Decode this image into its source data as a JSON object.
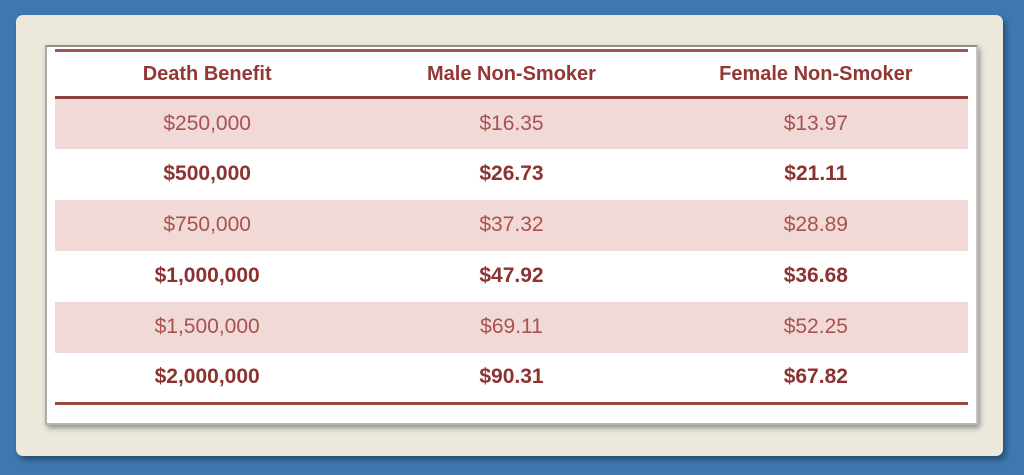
{
  "colors": {
    "frame_blue": "#3d78b2",
    "mat_cream": "#ece8dc",
    "panel_white": "#ffffff",
    "row_pink": "#f1d9d7",
    "rule_red": "#9d4a47",
    "header_text": "#943634",
    "bold_row_text": "#8c3230",
    "pink_row_text": "#a9524e"
  },
  "table": {
    "columns": [
      "Death Benefit",
      "Male Non-Smoker",
      "Female Non-Smoker"
    ],
    "rows": [
      [
        "$250,000",
        "$16.35",
        "$13.97"
      ],
      [
        "$500,000",
        "$26.73",
        "$21.11"
      ],
      [
        "$750,000",
        "$37.32",
        "$28.89"
      ],
      [
        "$1,000,000",
        "$47.92",
        "$36.68"
      ],
      [
        "$1,500,000",
        "$69.11",
        "$52.25"
      ],
      [
        "$2,000,000",
        "$90.31",
        "$67.82"
      ]
    ]
  },
  "chart_data": {
    "type": "table",
    "columns": [
      "Death Benefit",
      "Male Non-Smoker",
      "Female Non-Smoker"
    ],
    "rows": [
      [
        "$250,000",
        "$16.35",
        "$13.97"
      ],
      [
        "$500,000",
        "$26.73",
        "$21.11"
      ],
      [
        "$750,000",
        "$37.32",
        "$28.89"
      ],
      [
        "$1,000,000",
        "$47.92",
        "$36.68"
      ],
      [
        "$1,500,000",
        "$69.11",
        "$52.25"
      ],
      [
        "$2,000,000",
        "$90.31",
        "$67.82"
      ]
    ],
    "death_benefits_numeric": [
      250000,
      500000,
      750000,
      1000000,
      1500000,
      2000000
    ],
    "male_non_smoker_numeric": [
      16.35,
      26.73,
      37.32,
      47.92,
      69.11,
      90.31
    ],
    "female_non_smoker_numeric": [
      13.97,
      21.11,
      28.89,
      36.68,
      52.25,
      67.82
    ]
  }
}
